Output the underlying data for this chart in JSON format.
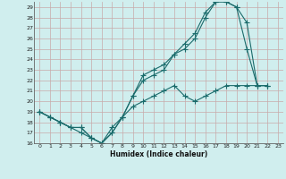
{
  "title": "",
  "xlabel": "Humidex (Indice chaleur)",
  "bg_color": "#d0eeee",
  "line_color": "#1a6b6b",
  "grid_color": "#b8d8d8",
  "xlim": [
    -0.5,
    23.5
  ],
  "ylim": [
    16,
    29.5
  ],
  "xticks": [
    0,
    1,
    2,
    3,
    4,
    5,
    6,
    7,
    8,
    9,
    10,
    11,
    12,
    13,
    14,
    15,
    16,
    17,
    18,
    19,
    20,
    21,
    22,
    23
  ],
  "yticks": [
    16,
    17,
    18,
    19,
    20,
    21,
    22,
    23,
    24,
    25,
    26,
    27,
    28,
    29
  ],
  "line1_x": [
    0,
    1,
    2,
    3,
    4,
    5,
    6,
    7,
    8,
    9,
    10,
    11,
    12,
    13,
    14,
    15,
    16,
    17,
    18,
    19,
    20,
    21,
    22
  ],
  "line1_y": [
    19,
    18.5,
    18,
    17.5,
    17.5,
    16.5,
    16,
    17.5,
    18.5,
    20.5,
    22,
    22.5,
    23,
    24.5,
    25,
    26,
    28,
    29.5,
    29.5,
    29,
    25,
    21.5,
    21.5
  ],
  "line2_x": [
    0,
    1,
    2,
    3,
    4,
    5,
    6,
    7,
    8,
    9,
    10,
    11,
    12,
    13,
    14,
    15,
    16,
    17,
    18,
    19,
    20,
    21,
    22
  ],
  "line2_y": [
    19,
    18.5,
    18,
    17.5,
    17.5,
    16.5,
    16,
    17,
    18.5,
    20.5,
    22.5,
    23,
    23.5,
    24.5,
    25.5,
    26.5,
    28.5,
    29.5,
    29.5,
    29,
    27.5,
    21.5,
    21.5
  ],
  "line3_x": [
    0,
    1,
    2,
    3,
    4,
    5,
    6,
    7,
    8,
    9,
    10,
    11,
    12,
    13,
    14,
    15,
    16,
    17,
    18,
    19,
    20,
    21,
    22
  ],
  "line3_y": [
    19,
    18.5,
    18,
    17.5,
    17.0,
    16.5,
    16,
    17,
    18.5,
    19.5,
    20,
    20.5,
    21,
    21.5,
    20.5,
    20,
    20.5,
    21,
    21.5,
    21.5,
    21.5,
    21.5,
    21.5
  ]
}
